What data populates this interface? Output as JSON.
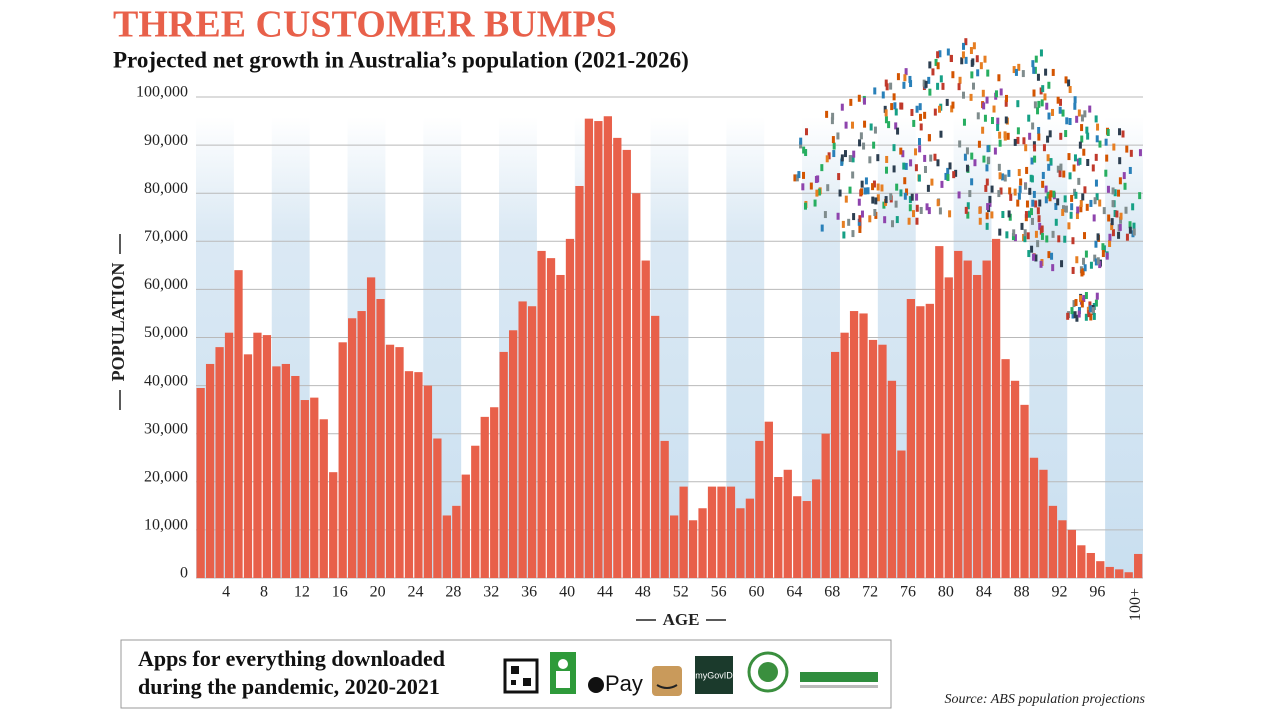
{
  "chart_data": {
    "type": "bar",
    "title": "THREE CUSTOMER BUMPS",
    "subtitle": "Projected net growth in Australia’s population (2021-2026)",
    "y_label": "POPULATION",
    "x_label": "AGE",
    "color": "#e8604a",
    "categories": [
      null,
      null,
      null,
      "4",
      null,
      null,
      null,
      "8",
      null,
      null,
      null,
      "12",
      null,
      null,
      null,
      "16",
      null,
      null,
      null,
      "20",
      null,
      null,
      null,
      "24",
      null,
      null,
      null,
      "28",
      null,
      null,
      null,
      "32",
      null,
      null,
      null,
      "36",
      null,
      null,
      null,
      "40",
      null,
      null,
      null,
      "44",
      null,
      null,
      null,
      "48",
      null,
      null,
      null,
      "52",
      null,
      null,
      null,
      "56",
      null,
      null,
      null,
      "60",
      null,
      null,
      null,
      "64",
      null,
      null,
      null,
      "68",
      null,
      null,
      null,
      "72",
      null,
      null,
      null,
      "76",
      null,
      null,
      null,
      "80",
      null,
      null,
      null,
      "84",
      null,
      null,
      null,
      "88",
      null,
      null,
      null,
      "92",
      null,
      null,
      null,
      "96",
      null,
      null,
      null,
      "100+"
    ],
    "values": [
      39500,
      44500,
      48000,
      51000,
      64000,
      46500,
      51000,
      50500,
      44000,
      44500,
      42000,
      37000,
      37500,
      33000,
      22000,
      49000,
      54000,
      55500,
      62500,
      58000,
      48500,
      48000,
      43000,
      42800,
      40000,
      29000,
      13000,
      15000,
      21500,
      27500,
      33500,
      35500,
      47000,
      51500,
      57500,
      56500,
      68000,
      66500,
      63000,
      70500,
      81500,
      95500,
      95000,
      96000,
      91500,
      89000,
      80000,
      66000,
      54500,
      28500,
      13000,
      19000,
      12000,
      14500,
      19000,
      19000,
      19000,
      14500,
      16500,
      28500,
      32500,
      21000,
      22500,
      17000,
      16000,
      20500,
      30000,
      47000,
      51000,
      55500,
      55000,
      49500,
      48500,
      41000,
      26500,
      58000,
      56500,
      57000,
      69000,
      62500,
      68000,
      66000,
      63000,
      66000,
      70500,
      45500,
      41000,
      36000,
      25000,
      22500,
      15000,
      12000,
      10000,
      6800,
      5200,
      3500,
      2300,
      1800,
      1200,
      5000
    ],
    "ylim": [
      0,
      100000
    ],
    "yticks": [
      0,
      {
        "value": 10000,
        "label": "10,000"
      },
      {
        "value": 20000,
        "label": "20,000"
      },
      {
        "value": 30000,
        "label": "30,000"
      },
      {
        "value": 40000,
        "label": "40,000"
      },
      {
        "value": 50000,
        "label": "50,000"
      },
      {
        "value": 60000,
        "label": "60,000"
      },
      {
        "value": 70000,
        "label": "70,000"
      },
      {
        "value": 80000,
        "label": "80,000"
      },
      {
        "value": 90000,
        "label": "90,000"
      },
      {
        "value": 100000,
        "label": "100,000"
      }
    ],
    "grid": true
  },
  "footer": {
    "text_line1": "Apps for everything downloaded",
    "text_line2": "during the pandemic, 2020-2021",
    "apple_pay": "Pay",
    "mygov": "myGovID",
    "source": "Source: ABS population projections"
  }
}
